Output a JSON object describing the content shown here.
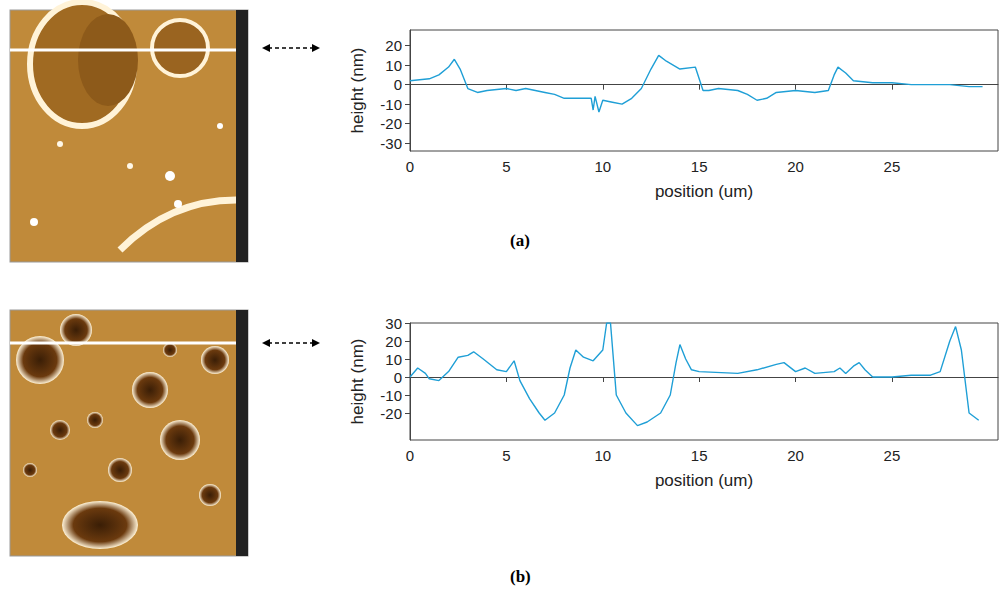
{
  "chart_data": [
    {
      "type": "line",
      "title": "(a)",
      "x_label": "position (um)",
      "y_label": "height (nm)",
      "color": "#1f9fd6",
      "xlim": [
        0,
        30.5
      ],
      "xticks": [
        0,
        5,
        10,
        15,
        20,
        25
      ],
      "ylim": [
        -34,
        28
      ],
      "yticks": [
        -30,
        -20,
        -10,
        0,
        10,
        20
      ],
      "grid": false,
      "x": [
        0,
        1,
        1.5,
        2,
        2.3,
        2.6,
        3,
        3.5,
        4,
        5,
        5.5,
        6,
        7,
        7.5,
        8,
        9,
        9.4,
        9.5,
        9.6,
        9.8,
        10,
        10.5,
        11,
        11.5,
        12,
        12.5,
        12.9,
        13.3,
        14,
        14.8,
        15.2,
        15.5,
        16,
        17,
        17.5,
        18,
        18.5,
        19,
        20,
        21,
        21.7,
        22,
        22.2,
        22.6,
        23,
        24,
        25,
        26,
        27,
        28,
        29,
        29.7
      ],
      "values": [
        2,
        3,
        5,
        9,
        13,
        8,
        -2,
        -4,
        -3,
        -2,
        -3,
        -2,
        -4,
        -5,
        -7,
        -7,
        -7,
        -13,
        -6,
        -14,
        -8,
        -9,
        -10,
        -7,
        -2,
        8,
        15,
        12,
        8,
        9,
        -3,
        -3,
        -2,
        -3,
        -5,
        -8,
        -7,
        -4,
        -3,
        -4,
        -3,
        5,
        9,
        6,
        2,
        1,
        1,
        0,
        0,
        0,
        -1,
        -1
      ]
    },
    {
      "type": "line",
      "title": "(b)",
      "x_label": "position (um)",
      "y_label": "height (nm)",
      "color": "#1f9fd6",
      "xlim": [
        0,
        30.5
      ],
      "xticks": [
        0,
        5,
        10,
        15,
        20,
        25
      ],
      "ylim": [
        -35,
        30
      ],
      "yticks": [
        -20,
        -10,
        0,
        10,
        20,
        30
      ],
      "grid": false,
      "x": [
        0,
        0.4,
        0.8,
        1,
        1.5,
        2,
        2.5,
        3,
        3.3,
        3.8,
        4.5,
        5,
        5.4,
        5.7,
        6.2,
        6.7,
        7,
        7.5,
        8,
        8.3,
        8.6,
        9,
        9.5,
        10,
        10.2,
        10.4,
        10.7,
        11.2,
        11.8,
        12.3,
        13,
        13.5,
        13.8,
        14,
        14.3,
        14.6,
        15,
        17,
        18,
        19,
        19.4,
        20,
        20.5,
        21,
        22,
        22.3,
        22.6,
        23,
        23.3,
        23.6,
        24,
        25,
        26,
        27,
        27.5,
        28,
        28.3,
        28.6,
        29,
        29.5
      ],
      "values": [
        0,
        5,
        2,
        -1,
        -2,
        3,
        11,
        12,
        14,
        10,
        4,
        3,
        9,
        -2,
        -12,
        -20,
        -24,
        -20,
        -10,
        5,
        15,
        11,
        9,
        15,
        30,
        30,
        -10,
        -20,
        -27,
        -25,
        -20,
        -10,
        8,
        18,
        10,
        4,
        3,
        2,
        4,
        7,
        8,
        3,
        5,
        2,
        3,
        5,
        2,
        6,
        8,
        4,
        0,
        0,
        1,
        1,
        3,
        20,
        28,
        15,
        -20,
        -24
      ]
    }
  ]
}
